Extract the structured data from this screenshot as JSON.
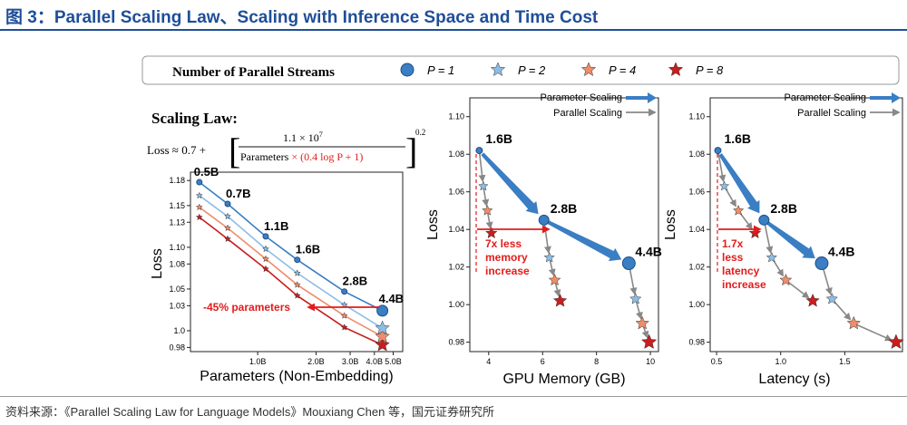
{
  "figure_title": "图 3：Parallel Scaling Law、Scaling with Inference Space and Time Cost",
  "source_note": "资料来源：《Parallel Scaling Law for Language Models》Mouxiang Chen 等，国元证券研究所",
  "legend": {
    "title": "Number of Parallel Streams",
    "items": [
      {
        "label": "P = 1",
        "marker": "circle",
        "color": "#3a7ec4"
      },
      {
        "label": "P = 2",
        "marker": "star",
        "color": "#8dbde6"
      },
      {
        "label": "P = 4",
        "marker": "star",
        "color": "#ee8d6a"
      },
      {
        "label": "P = 8",
        "marker": "star",
        "color": "#c81e1e"
      }
    ]
  },
  "formula": {
    "heading": "Scaling Law:",
    "lhs": "Loss ≈ 0.7 +",
    "numerator": "1.1 × 10",
    "numerator_exp": "7",
    "denominator": "Parameters",
    "denominator_red": "× (0.4 log P + 1)",
    "outer_exp": "0.2"
  },
  "colors": {
    "p1": "#3a7ec4",
    "p2": "#8dbde6",
    "p4": "#ee8d6a",
    "p8": "#c81e1e",
    "arrow_blue": "#3a7ec4",
    "arrow_grey": "#888888",
    "accent_red": "#e31b1b",
    "title_blue": "#1f4e99"
  },
  "arrow_legend": {
    "parameter": "Parameter Scaling",
    "parallel": "Parallel Scaling"
  },
  "chart_data": [
    {
      "id": "scaling-law",
      "type": "line",
      "xlabel": "Parameters (Non-Embedding)",
      "ylabel": "Loss",
      "x_scale": "log",
      "xlim": [
        0.45,
        5.6
      ],
      "ylim": [
        0.975,
        1.19
      ],
      "x_ticks": [
        {
          "v": 1.0,
          "label": "1.0B"
        },
        {
          "v": 2.0,
          "label": "2.0B"
        },
        {
          "v": 3.0,
          "label": "3.0B"
        },
        {
          "v": 4.0,
          "label": "4.0B"
        },
        {
          "v": 5.0,
          "label": "5.0B"
        }
      ],
      "y_ticks": [
        {
          "v": 1.18,
          "label": "1.18"
        },
        {
          "v": 1.15,
          "label": "1.15"
        },
        {
          "v": 1.13,
          "label": "1.13"
        },
        {
          "v": 1.1,
          "label": "1.10"
        },
        {
          "v": 1.08,
          "label": "1.08"
        },
        {
          "v": 1.05,
          "label": "1.05"
        },
        {
          "v": 1.03,
          "label": "1.03"
        },
        {
          "v": 1.0,
          "label": "1.0"
        },
        {
          "v": 0.98,
          "label": "0.98"
        }
      ],
      "x": [
        0.5,
        0.7,
        1.1,
        1.6,
        2.8,
        4.4
      ],
      "point_labels": [
        "0.5B",
        "0.7B",
        "1.1B",
        "1.6B",
        "2.8B",
        "4.4B"
      ],
      "series": [
        {
          "name": "P = 1",
          "values": [
            1.178,
            1.152,
            1.113,
            1.085,
            1.047,
            1.024
          ]
        },
        {
          "name": "P = 2",
          "values": [
            1.162,
            1.137,
            1.098,
            1.069,
            1.031,
            1.003
          ]
        },
        {
          "name": "P = 4",
          "values": [
            1.148,
            1.123,
            1.086,
            1.055,
            1.018,
            0.993
          ]
        },
        {
          "name": "P = 8",
          "values": [
            1.136,
            1.11,
            1.074,
            1.042,
            1.004,
            0.983
          ]
        }
      ],
      "annotation": "-45% parameters"
    },
    {
      "id": "gpu-memory",
      "type": "line",
      "xlabel": "GPU Memory (GB)",
      "ylabel": "Loss",
      "xlim": [
        3.3,
        10.3
      ],
      "ylim": [
        0.975,
        1.11
      ],
      "x_ticks": [
        {
          "v": 4,
          "label": "4"
        },
        {
          "v": 6,
          "label": "6"
        },
        {
          "v": 8,
          "label": "8"
        },
        {
          "v": 10,
          "label": "10"
        }
      ],
      "y_ticks": [
        {
          "v": 1.1,
          "label": "1.10"
        },
        {
          "v": 1.08,
          "label": "1.08"
        },
        {
          "v": 1.06,
          "label": "1.06"
        },
        {
          "v": 1.04,
          "label": "1.04"
        },
        {
          "v": 1.02,
          "label": "1.02"
        },
        {
          "v": 1.0,
          "label": "1.00"
        },
        {
          "v": 0.98,
          "label": "0.98"
        }
      ],
      "param_points": [
        {
          "label": "1.6B",
          "x": 3.65,
          "y": 1.082
        },
        {
          "label": "2.8B",
          "x": 6.05,
          "y": 1.045
        },
        {
          "label": "4.4B",
          "x": 9.2,
          "y": 1.022
        }
      ],
      "parallel_points": [
        [
          {
            "x": 3.65,
            "y": 1.082
          },
          {
            "x": 3.8,
            "y": 1.063
          },
          {
            "x": 3.95,
            "y": 1.05
          },
          {
            "x": 4.1,
            "y": 1.038
          }
        ],
        [
          {
            "x": 6.05,
            "y": 1.045
          },
          {
            "x": 6.25,
            "y": 1.025
          },
          {
            "x": 6.45,
            "y": 1.013
          },
          {
            "x": 6.65,
            "y": 1.002
          }
        ],
        [
          {
            "x": 9.2,
            "y": 1.022
          },
          {
            "x": 9.45,
            "y": 1.003
          },
          {
            "x": 9.7,
            "y": 0.99
          },
          {
            "x": 9.95,
            "y": 0.98
          }
        ]
      ],
      "annotation": [
        "7x less",
        "memory",
        "increase"
      ]
    },
    {
      "id": "latency",
      "type": "line",
      "xlabel": "Latency (s)",
      "ylabel": "Loss",
      "xlim": [
        0.45,
        1.95
      ],
      "ylim": [
        0.975,
        1.11
      ],
      "x_ticks": [
        {
          "v": 0.5,
          "label": "0.5"
        },
        {
          "v": 1.0,
          "label": "1.0"
        },
        {
          "v": 1.5,
          "label": "1.5"
        }
      ],
      "y_ticks": [
        {
          "v": 1.1,
          "label": "1.10"
        },
        {
          "v": 1.08,
          "label": "1.08"
        },
        {
          "v": 1.06,
          "label": "1.06"
        },
        {
          "v": 1.04,
          "label": "1.04"
        },
        {
          "v": 1.02,
          "label": "1.02"
        },
        {
          "v": 1.0,
          "label": "1.00"
        },
        {
          "v": 0.98,
          "label": "0.98"
        }
      ],
      "param_points": [
        {
          "label": "1.6B",
          "x": 0.51,
          "y": 1.082
        },
        {
          "label": "2.8B",
          "x": 0.87,
          "y": 1.045
        },
        {
          "label": "4.4B",
          "x": 1.32,
          "y": 1.022
        }
      ],
      "parallel_points": [
        [
          {
            "x": 0.51,
            "y": 1.082
          },
          {
            "x": 0.56,
            "y": 1.063
          },
          {
            "x": 0.67,
            "y": 1.05
          },
          {
            "x": 0.8,
            "y": 1.038
          }
        ],
        [
          {
            "x": 0.87,
            "y": 1.045
          },
          {
            "x": 0.93,
            "y": 1.025
          },
          {
            "x": 1.04,
            "y": 1.013
          },
          {
            "x": 1.25,
            "y": 1.002
          }
        ],
        [
          {
            "x": 1.32,
            "y": 1.022
          },
          {
            "x": 1.4,
            "y": 1.003
          },
          {
            "x": 1.57,
            "y": 0.99
          },
          {
            "x": 1.9,
            "y": 0.98
          }
        ]
      ],
      "annotation": [
        "1.7x",
        "less",
        "latency",
        "increase"
      ]
    }
  ]
}
